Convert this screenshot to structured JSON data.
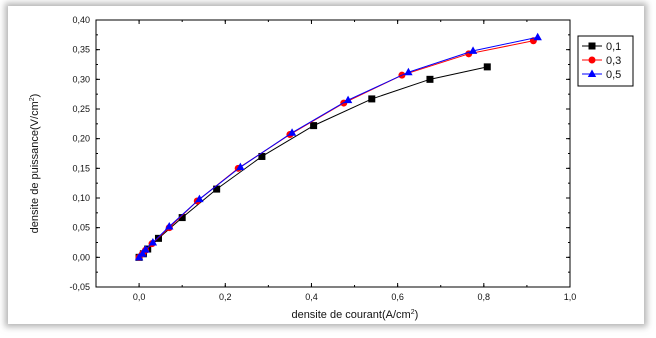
{
  "chart_data": {
    "type": "line",
    "title": "",
    "xlabel": "densite de courant(A/cm",
    "xlabel_sup": "2",
    "xlabel_end": ")",
    "ylabel": "densite de puissance(V/cm",
    "ylabel_sup": "2",
    "ylabel_end": ")",
    "xlim": [
      -0.1,
      1.0
    ],
    "ylim": [
      -0.05,
      0.4
    ],
    "xticks": [
      "0,0",
      "0,2",
      "0,4",
      "0,6",
      "0,8",
      "1,0"
    ],
    "xtick_values": [
      0.0,
      0.2,
      0.4,
      0.6,
      0.8,
      1.0
    ],
    "yticks": [
      "-0,05",
      "0,00",
      "0,05",
      "0,10",
      "0,15",
      "0,20",
      "0,25",
      "0,30",
      "0,35",
      "0,40"
    ],
    "ytick_values": [
      -0.05,
      0.0,
      0.05,
      0.1,
      0.15,
      0.2,
      0.25,
      0.3,
      0.35,
      0.4
    ],
    "grid": false,
    "legend_position": "top-right",
    "series": [
      {
        "name": "0,1",
        "color": "#000000",
        "marker": "square",
        "x": [
          0.0,
          0.01,
          0.02,
          0.045,
          0.1,
          0.18,
          0.285,
          0.405,
          0.54,
          0.675,
          0.808
        ],
        "y": [
          0.0,
          0.006,
          0.014,
          0.032,
          0.067,
          0.115,
          0.17,
          0.222,
          0.267,
          0.3,
          0.321
        ]
      },
      {
        "name": "0,3",
        "color": "#ff0000",
        "marker": "circle",
        "x": [
          0.0,
          0.008,
          0.015,
          0.03,
          0.07,
          0.135,
          0.23,
          0.35,
          0.475,
          0.61,
          0.765,
          0.915
        ],
        "y": [
          0.0,
          0.006,
          0.012,
          0.023,
          0.05,
          0.095,
          0.15,
          0.207,
          0.26,
          0.307,
          0.343,
          0.365
        ]
      },
      {
        "name": "0,5",
        "color": "#0000ff",
        "marker": "triangle",
        "x": [
          0.0,
          0.008,
          0.015,
          0.032,
          0.07,
          0.14,
          0.235,
          0.355,
          0.485,
          0.625,
          0.775,
          0.925
        ],
        "y": [
          0.0,
          0.006,
          0.013,
          0.025,
          0.052,
          0.098,
          0.152,
          0.21,
          0.265,
          0.312,
          0.348,
          0.371
        ]
      }
    ]
  }
}
